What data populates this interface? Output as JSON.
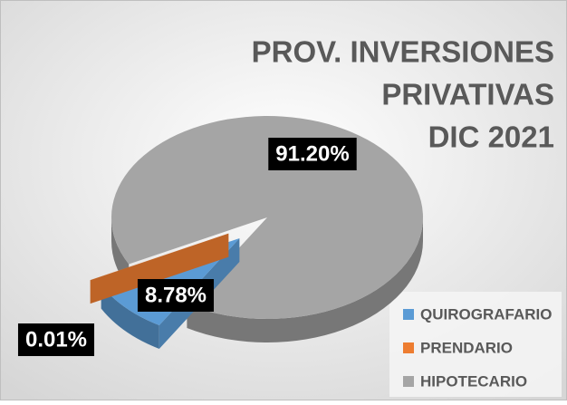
{
  "chart_data": {
    "type": "pie",
    "title": [
      "PROV. INVERSIONES",
      "PRIVATIVAS",
      "DIC 2021"
    ],
    "categories": [
      "QUIROGRAFARIO",
      "PRENDARIO",
      "HIPOTECARIO"
    ],
    "values": [
      8.78,
      0.01,
      91.2
    ],
    "value_labels": [
      "8.78%",
      "0.01%",
      "91.20%"
    ],
    "colors": [
      "#5b9bd5",
      "#ed7d31",
      "#a5a5a5"
    ],
    "legend": "bottom-right"
  }
}
